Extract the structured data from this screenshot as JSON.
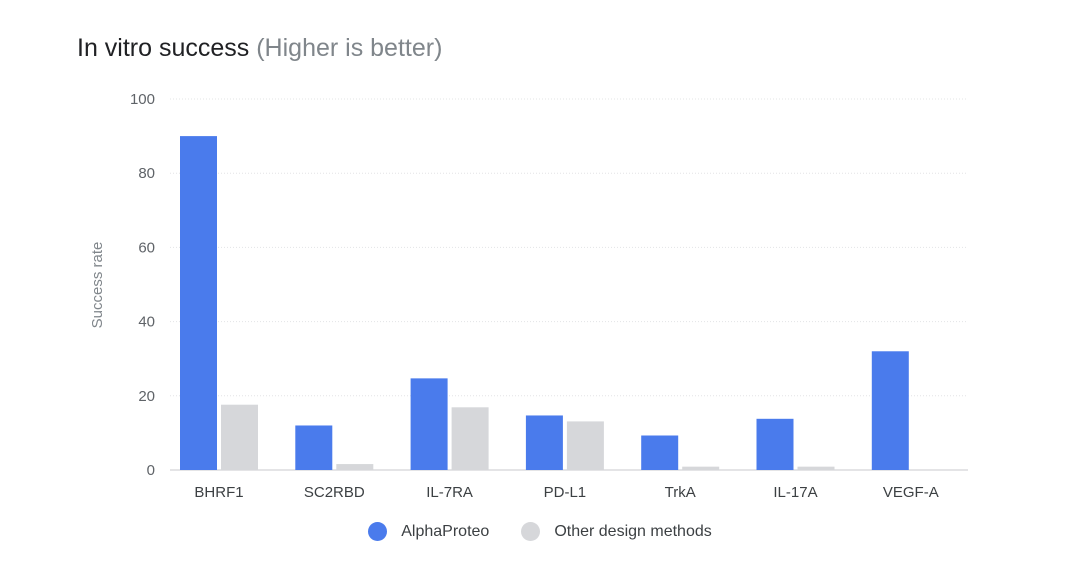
{
  "title": "In vitro success",
  "subtitle": "(Higher is better)",
  "chart_data": {
    "type": "bar",
    "categories": [
      "BHRF1",
      "SC2RBD",
      "IL-7RA",
      "PD-L1",
      "TrkA",
      "IL-17A",
      "VEGF-A"
    ],
    "series": [
      {
        "name": "AlphaProteo",
        "color": "#4a7bec",
        "values": [
          90,
          12,
          24.7,
          14.7,
          9.3,
          13.8,
          32
        ]
      },
      {
        "name": "Other design methods",
        "color": "#d6d7da",
        "values": [
          17.6,
          1.6,
          16.9,
          13.1,
          0.9,
          0.9,
          0
        ]
      }
    ],
    "ylabel": "Success rate",
    "xlabel": "",
    "ylim": [
      0,
      100
    ],
    "yticks": [
      "0",
      "20",
      "40",
      "60",
      "80",
      "100"
    ],
    "grid": true,
    "legend_position": "bottom-center"
  }
}
